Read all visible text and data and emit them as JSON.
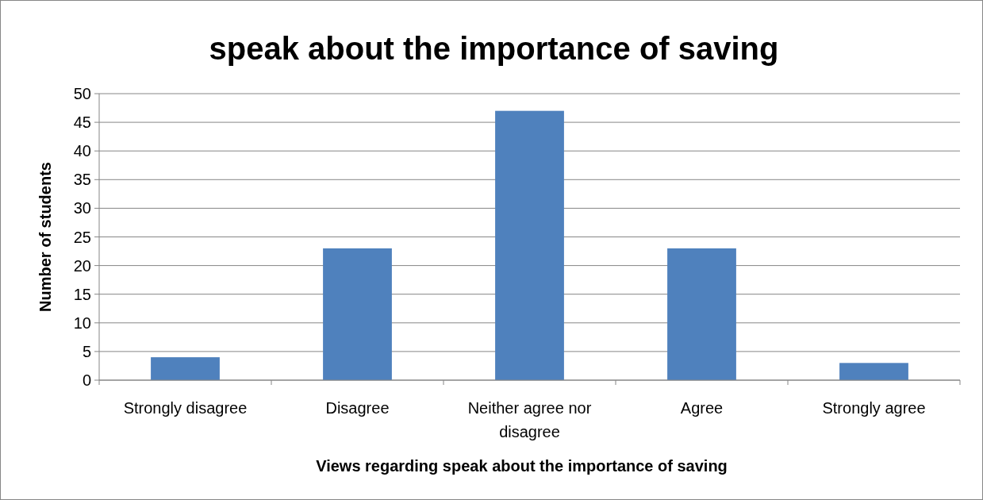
{
  "chart_data": {
    "type": "bar",
    "title": "speak about the importance of saving",
    "xlabel": "Views regarding speak about the importance of saving",
    "ylabel": "Number of students",
    "categories": [
      "Strongly disagree",
      "Disagree",
      "Neither agree nor disagree",
      "Agree",
      "Strongly agree"
    ],
    "values": [
      4,
      23,
      47,
      23,
      3
    ],
    "color": "#4f81bd",
    "ylim": [
      0,
      50
    ],
    "yticks": [
      0,
      5,
      10,
      15,
      20,
      25,
      30,
      35,
      40,
      45,
      50
    ],
    "grid": "y"
  }
}
